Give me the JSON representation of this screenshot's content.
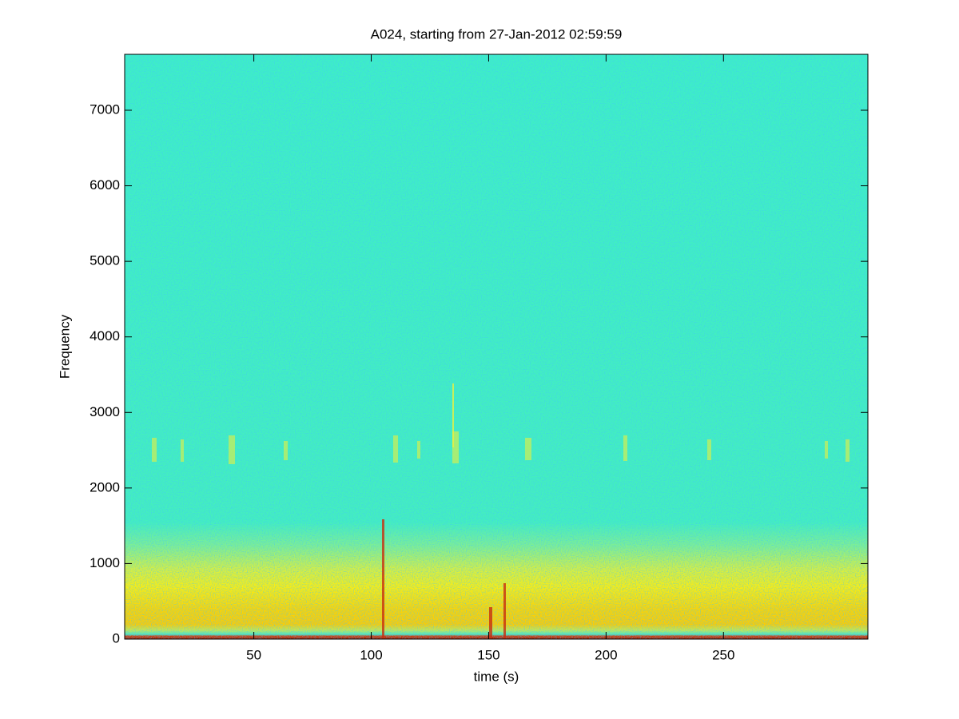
{
  "chart_data": {
    "type": "spectrogram",
    "title": "A024, starting from 27-Jan-2012 02:59:59",
    "x_label": "time (s)",
    "y_label": "Frequency",
    "xlim": [
      -5,
      311.5
    ],
    "xticks": [
      50,
      100,
      150,
      200,
      250
    ],
    "ylim": [
      0,
      7740
    ],
    "yticks": [
      0,
      1000,
      2000,
      3000,
      4000,
      5000,
      6000,
      7000
    ],
    "grid": false
  }
}
